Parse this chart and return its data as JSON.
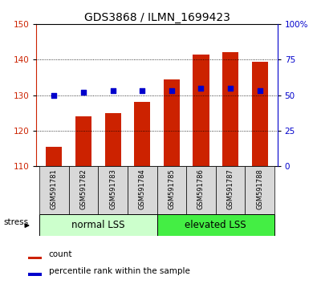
{
  "title": "GDS3868 / ILMN_1699423",
  "samples": [
    "GSM591781",
    "GSM591782",
    "GSM591783",
    "GSM591784",
    "GSM591785",
    "GSM591786",
    "GSM591787",
    "GSM591788"
  ],
  "counts": [
    115.5,
    124.0,
    125.0,
    128.0,
    134.5,
    141.5,
    142.0,
    139.5
  ],
  "percentiles": [
    50.0,
    52.0,
    53.0,
    53.0,
    53.0,
    55.0,
    55.0,
    53.0
  ],
  "ymin": 110,
  "ymax": 150,
  "yticks_left": [
    110,
    120,
    130,
    140,
    150
  ],
  "yticks_right": [
    0,
    25,
    50,
    75,
    100
  ],
  "bar_color": "#cc2200",
  "dot_color": "#0000cc",
  "bar_bottom": 110,
  "group1_label": "normal LSS",
  "group2_label": "elevated LSS",
  "group1_bg": "#ccffcc",
  "group2_bg": "#44ee44",
  "stress_label": "stress",
  "legend_count_label": "count",
  "legend_pct_label": "percentile rank within the sample",
  "title_fontsize": 10,
  "axis_label_color_left": "#cc2200",
  "axis_label_color_right": "#0000cc",
  "tick_fontsize": 7.5,
  "sample_fontsize": 6.0,
  "group_fontsize": 8.5
}
